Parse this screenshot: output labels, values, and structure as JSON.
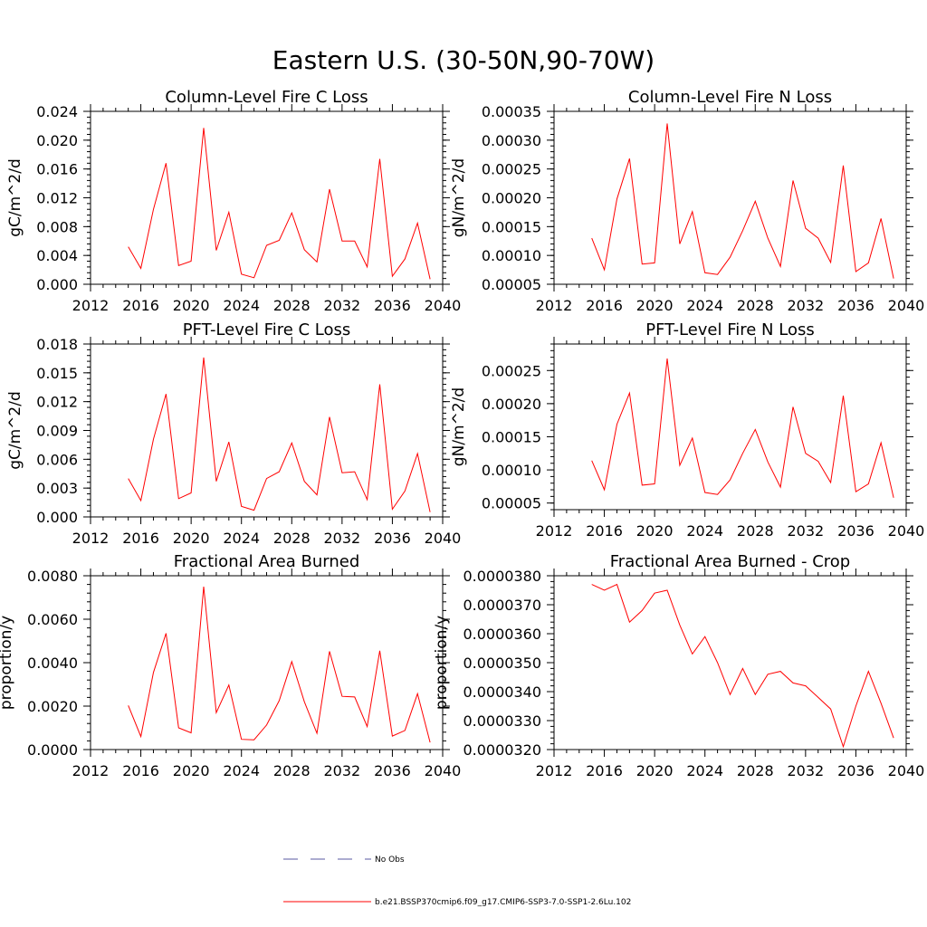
{
  "figure": {
    "title": "Eastern U.S. (30-50N,90-70W)"
  },
  "legend": {
    "obs_label": "No Obs",
    "model_label": "b.e21.BSSP370cmip6.f09_g17.CMIP6-SSP3-7.0-SSP1-2.6Lu.102",
    "obs_color": "#5a5aa0",
    "model_color": "#ff0000"
  },
  "chart_data": [
    {
      "type": "line",
      "title": "Column-Level Fire C Loss",
      "ylabel": "gC/m^2/d",
      "xlim": [
        2012,
        2040
      ],
      "xticks": [
        "2012",
        "2016",
        "2020",
        "2024",
        "2028",
        "2032",
        "2036",
        "2040"
      ],
      "ylim": [
        0.0,
        0.024
      ],
      "yticks": [
        "0.000",
        "0.004",
        "0.008",
        "0.012",
        "0.016",
        "0.020",
        "0.024"
      ],
      "x": [
        2015,
        2016,
        2017,
        2018,
        2019,
        2020,
        2021,
        2022,
        2023,
        2024,
        2025,
        2026,
        2027,
        2028,
        2029,
        2030,
        2031,
        2032,
        2033,
        2034,
        2035,
        2036,
        2037,
        2038,
        2039
      ],
      "series": [
        {
          "values": [
            0.0052,
            0.0022,
            0.0104,
            0.0168,
            0.0026,
            0.0032,
            0.0217,
            0.0047,
            0.01,
            0.0014,
            0.0009,
            0.0054,
            0.0061,
            0.0099,
            0.0048,
            0.0031,
            0.0132,
            0.006,
            0.006,
            0.0024,
            0.0174,
            0.0011,
            0.0035,
            0.0085,
            0.0007
          ]
        }
      ]
    },
    {
      "type": "line",
      "title": "Column-Level Fire N Loss",
      "ylabel": "gN/m^2/d",
      "xlim": [
        2012,
        2040
      ],
      "xticks": [
        "2012",
        "2016",
        "2020",
        "2024",
        "2028",
        "2032",
        "2036",
        "2040"
      ],
      "ylim": [
        5e-05,
        0.00035
      ],
      "yticks": [
        "0.00005",
        "0.00010",
        "0.00015",
        "0.00020",
        "0.00025",
        "0.00030",
        "0.00035"
      ],
      "x": [
        2015,
        2016,
        2017,
        2018,
        2019,
        2020,
        2021,
        2022,
        2023,
        2024,
        2025,
        2026,
        2027,
        2028,
        2029,
        2030,
        2031,
        2032,
        2033,
        2034,
        2035,
        2036,
        2037,
        2038,
        2039
      ],
      "series": [
        {
          "values": [
            0.00013,
            7.5e-05,
            0.000198,
            0.000268,
            8.5e-05,
            8.7e-05,
            0.000329,
            0.00012,
            0.000176,
            7e-05,
            6.7e-05,
            9.7e-05,
            0.000143,
            0.000194,
            0.00013,
            8.1e-05,
            0.00023,
            0.000147,
            0.00013,
            8.8e-05,
            0.000256,
            7.2e-05,
            8.7e-05,
            0.000164,
            6e-05
          ]
        }
      ]
    },
    {
      "type": "line",
      "title": "PFT-Level Fire C Loss",
      "ylabel": "gC/m^2/d",
      "xlim": [
        2012,
        2040
      ],
      "xticks": [
        "2012",
        "2016",
        "2020",
        "2024",
        "2028",
        "2032",
        "2036",
        "2040"
      ],
      "ylim": [
        0.0,
        0.018
      ],
      "yticks": [
        "0.000",
        "0.003",
        "0.006",
        "0.009",
        "0.012",
        "0.015",
        "0.018"
      ],
      "x": [
        2015,
        2016,
        2017,
        2018,
        2019,
        2020,
        2021,
        2022,
        2023,
        2024,
        2025,
        2026,
        2027,
        2028,
        2029,
        2030,
        2031,
        2032,
        2033,
        2034,
        2035,
        2036,
        2037,
        2038,
        2039
      ],
      "series": [
        {
          "values": [
            0.004,
            0.0017,
            0.0081,
            0.0128,
            0.0019,
            0.0025,
            0.0166,
            0.0037,
            0.0078,
            0.0011,
            0.0007,
            0.004,
            0.0047,
            0.0077,
            0.0037,
            0.0023,
            0.0104,
            0.0046,
            0.0047,
            0.0018,
            0.0138,
            0.0008,
            0.0027,
            0.0066,
            0.0005
          ]
        }
      ]
    },
    {
      "type": "line",
      "title": "PFT-Level Fire N Loss",
      "ylabel": "gN/m^2/d",
      "xlim": [
        2012,
        2040
      ],
      "xticks": [
        "2012",
        "2016",
        "2020",
        "2024",
        "2028",
        "2032",
        "2036",
        "2040"
      ],
      "ylim": [
        4e-05,
        0.00029
      ],
      "yticks": [
        "0.00005",
        "0.00010",
        "0.00015",
        "0.00020",
        "0.00025"
      ],
      "x": [
        2015,
        2016,
        2017,
        2018,
        2019,
        2020,
        2021,
        2022,
        2023,
        2024,
        2025,
        2026,
        2027,
        2028,
        2029,
        2030,
        2031,
        2032,
        2033,
        2034,
        2035,
        2036,
        2037,
        2038,
        2039
      ],
      "series": [
        {
          "values": [
            0.000114,
            7e-05,
            0.000169,
            0.000216,
            7.7e-05,
            7.9e-05,
            0.000268,
            0.000107,
            0.000148,
            6.6e-05,
            6.3e-05,
            8.5e-05,
            0.000125,
            0.000161,
            0.000112,
            7.4e-05,
            0.000195,
            0.000125,
            0.000113,
            8.1e-05,
            0.000212,
            6.7e-05,
            7.9e-05,
            0.000141,
            5.8e-05
          ]
        }
      ]
    },
    {
      "type": "line",
      "title": "Fractional Area Burned",
      "ylabel": "proportion/y",
      "xlim": [
        2012,
        2040
      ],
      "xticks": [
        "2012",
        "2016",
        "2020",
        "2024",
        "2028",
        "2032",
        "2036",
        "2040"
      ],
      "ylim": [
        0.0,
        0.008
      ],
      "yticks": [
        "0.0000",
        "0.0020",
        "0.0040",
        "0.0060",
        "0.0080"
      ],
      "x": [
        2015,
        2016,
        2017,
        2018,
        2019,
        2020,
        2021,
        2022,
        2023,
        2024,
        2025,
        2026,
        2027,
        2028,
        2029,
        2030,
        2031,
        2032,
        2033,
        2034,
        2035,
        2036,
        2037,
        2038,
        2039
      ],
      "series": [
        {
          "values": [
            0.00203,
            0.0006,
            0.00355,
            0.00535,
            0.001,
            0.00077,
            0.0075,
            0.0017,
            0.00297,
            0.00047,
            0.00045,
            0.00113,
            0.00225,
            0.00405,
            0.0022,
            0.00075,
            0.00452,
            0.00245,
            0.00242,
            0.00106,
            0.00455,
            0.00062,
            0.00088,
            0.00257,
            0.00033
          ]
        }
      ]
    },
    {
      "type": "line",
      "title": "Fractional Area Burned - Crop",
      "ylabel": "proportion/y",
      "xlim": [
        2012,
        2040
      ],
      "xticks": [
        "2012",
        "2016",
        "2020",
        "2024",
        "2028",
        "2032",
        "2036",
        "2040"
      ],
      "ylim": [
        3.2e-05,
        3.8e-05
      ],
      "yticks": [
        "0.0000320",
        "0.0000330",
        "0.0000340",
        "0.0000350",
        "0.0000360",
        "0.0000370",
        "0.0000380"
      ],
      "x": [
        2015,
        2016,
        2017,
        2018,
        2019,
        2020,
        2021,
        2022,
        2023,
        2024,
        2025,
        2026,
        2027,
        2028,
        2029,
        2030,
        2031,
        2032,
        2033,
        2034,
        2035,
        2036,
        2037,
        2038,
        2039
      ],
      "series": [
        {
          "values": [
            3.77e-05,
            3.75e-05,
            3.77e-05,
            3.64e-05,
            3.68e-05,
            3.74e-05,
            3.75e-05,
            3.63e-05,
            3.53e-05,
            3.59e-05,
            3.5e-05,
            3.39e-05,
            3.48e-05,
            3.39e-05,
            3.46e-05,
            3.47e-05,
            3.43e-05,
            3.42e-05,
            3.38e-05,
            3.34e-05,
            3.21e-05,
            3.35e-05,
            3.47e-05,
            3.36e-05,
            3.24e-05
          ]
        }
      ]
    }
  ]
}
